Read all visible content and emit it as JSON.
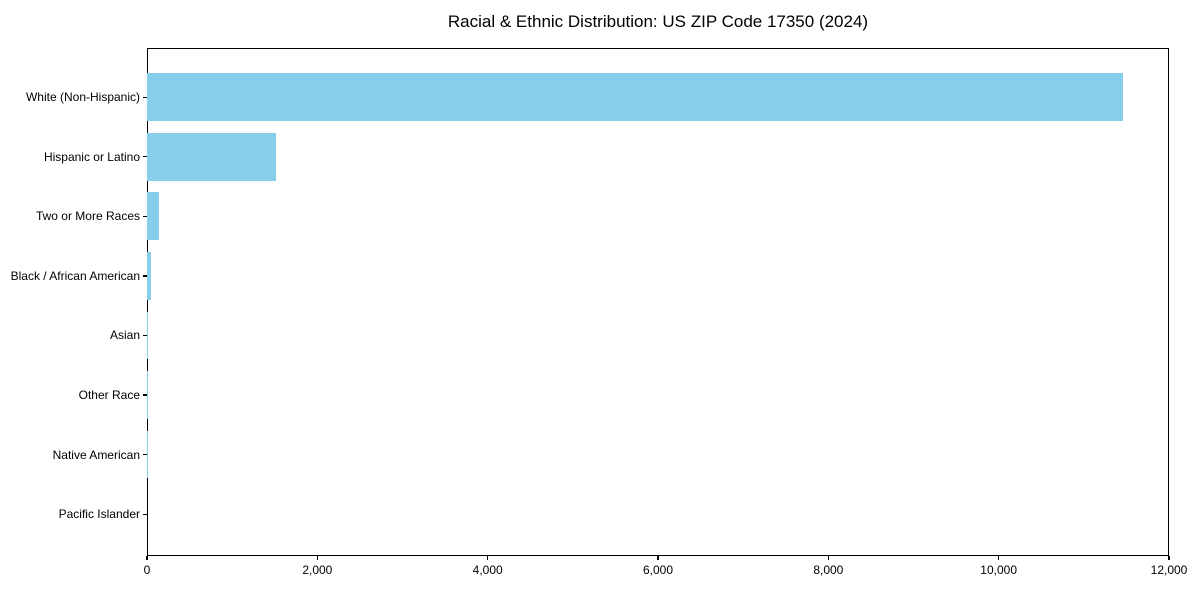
{
  "title": "Racial & Ethnic Distribution: US ZIP Code 17350 (2024)",
  "chart_data": {
    "type": "bar",
    "orientation": "horizontal",
    "title": "Racial & Ethnic Distribution: US ZIP Code 17350 (2024)",
    "xlabel": "",
    "ylabel": "",
    "categories": [
      "White (Non-Hispanic)",
      "Hispanic or Latino",
      "Two or More Races",
      "Black / African American",
      "Asian",
      "Other Race",
      "Native American",
      "Pacific Islander"
    ],
    "values": [
      11460,
      1520,
      140,
      50,
      15,
      5,
      3,
      0
    ],
    "xlim": [
      0,
      12000
    ],
    "x_ticks": [
      0,
      2000,
      4000,
      6000,
      8000,
      10000,
      12000
    ],
    "x_tick_labels": [
      "0",
      "2,000",
      "4,000",
      "6,000",
      "8,000",
      "10,000",
      "12,000"
    ],
    "bar_color": "#87CEEB",
    "grid": false,
    "legend": false
  },
  "colors": {
    "bar": "#87CEEB",
    "axis": "#000000",
    "text": "#000000",
    "background": "#FFFFFF"
  }
}
